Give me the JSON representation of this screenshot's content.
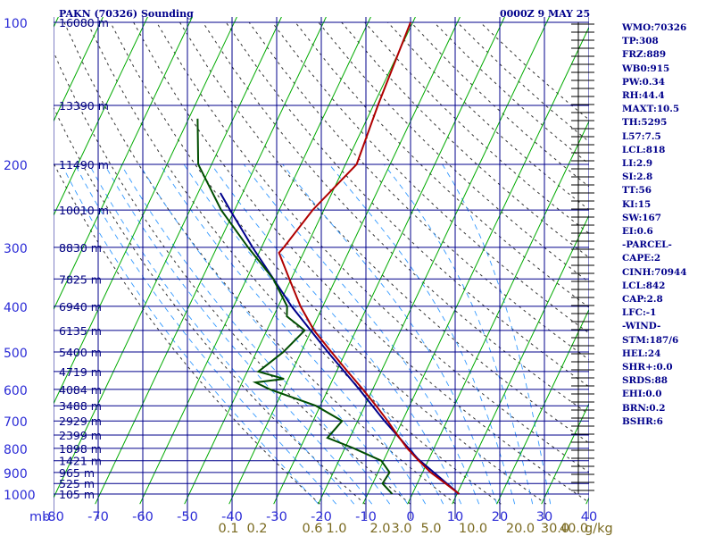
{
  "title": "PAKN (70326) Sounding",
  "datetime": "0000Z  9 MAY 25",
  "indices": [
    "WMO:70326",
    "TP:308",
    "FRZ:889",
    "WB0:915",
    "PW:0.34",
    "RH:44.4",
    "MAXT:10.5",
    "TH:5295",
    "L57:7.5",
    "LCL:818",
    "LI:2.9",
    "SI:2.8",
    "TT:56",
    "KI:15",
    "SW:167",
    "EI:0.6",
    "-PARCEL-",
    "CAPE:2",
    "CINH:70944",
    "LCL:842",
    "CAP:2.8",
    "LFC:-1",
    "-WIND-",
    "STM:187/6",
    "HEL:24",
    "SHR+:0.0",
    "SRDS:88",
    "EHI:0.0",
    "BRN:0.2",
    "BSHR:6"
  ],
  "colors": {
    "grid": "#00008b",
    "isotherm": "#00aa00",
    "dry_adiabat": "#333333",
    "moist_adiabat": "#3399ff",
    "temperature": "#b00000",
    "dewpoint": "#004d00",
    "parcel": "#00008b",
    "text": "#00008b"
  },
  "chart_data": {
    "type": "skew-t",
    "axis_unit_label": "mb",
    "pressure_levels": [
      100,
      200,
      300,
      400,
      500,
      600,
      700,
      800,
      900,
      1000
    ],
    "height_labels": [
      "16080 m",
      "13390 m",
      "11490 m",
      "10010 m",
      "8830 m",
      "7825 m",
      "6940 m",
      "6135 m",
      "5400 m",
      "4719 m",
      "4084 m",
      "3488 m",
      "2929 m",
      "2399 m",
      "1898 m",
      "1421 m",
      "965 m",
      "525 m",
      "105 m"
    ],
    "height_label_pressures": [
      100,
      150,
      200,
      250,
      300,
      350,
      400,
      450,
      500,
      550,
      600,
      650,
      700,
      750,
      800,
      850,
      900,
      950,
      1000
    ],
    "temperature_ticks": [
      -80,
      -70,
      -60,
      -50,
      -40,
      -30,
      -20,
      -10,
      0,
      10,
      20,
      30,
      40
    ],
    "mixing_ratio_labels": [
      "0.1",
      "0.2",
      "0.6",
      "1.0",
      "2.0",
      "3.0",
      "5.0",
      "10.0",
      "20.0",
      "30.0",
      "40.0"
    ],
    "mixing_ratio_unit": "g/kg",
    "temperature_profile": [
      {
        "p": 1000,
        "t": 10.5
      },
      {
        "p": 950,
        "t": 6.3
      },
      {
        "p": 900,
        "t": 1.8
      },
      {
        "p": 850,
        "t": -2.1
      },
      {
        "p": 800,
        "t": -6.0
      },
      {
        "p": 750,
        "t": -9.6
      },
      {
        "p": 700,
        "t": -13.3
      },
      {
        "p": 650,
        "t": -17.5
      },
      {
        "p": 600,
        "t": -22.2
      },
      {
        "p": 550,
        "t": -27.5
      },
      {
        "p": 500,
        "t": -33.2
      },
      {
        "p": 450,
        "t": -39.4
      },
      {
        "p": 400,
        "t": -45.0
      },
      {
        "p": 350,
        "t": -50.4
      },
      {
        "p": 308,
        "t": -55.5
      },
      {
        "p": 300,
        "t": -55.0
      },
      {
        "p": 250,
        "t": -52.5
      },
      {
        "p": 200,
        "t": -47.5
      },
      {
        "p": 150,
        "t": -49.0
      },
      {
        "p": 100,
        "t": -50.5
      }
    ],
    "dewpoint_profile": [
      {
        "p": 1000,
        "t": -4.5
      },
      {
        "p": 950,
        "t": -7.8
      },
      {
        "p": 900,
        "t": -7.4
      },
      {
        "p": 850,
        "t": -10.5
      },
      {
        "p": 800,
        "t": -18.0
      },
      {
        "p": 760,
        "t": -25.0
      },
      {
        "p": 720,
        "t": -24.0
      },
      {
        "p": 700,
        "t": -23.5
      },
      {
        "p": 650,
        "t": -31.0
      },
      {
        "p": 600,
        "t": -43.0
      },
      {
        "p": 580,
        "t": -47.0
      },
      {
        "p": 570,
        "t": -41.0
      },
      {
        "p": 550,
        "t": -47.5
      },
      {
        "p": 500,
        "t": -44.0
      },
      {
        "p": 450,
        "t": -41.5
      },
      {
        "p": 420,
        "t": -47.0
      },
      {
        "p": 400,
        "t": -48.0
      },
      {
        "p": 350,
        "t": -54.0
      },
      {
        "p": 300,
        "t": -63.0
      },
      {
        "p": 250,
        "t": -73.0
      },
      {
        "p": 200,
        "t": -83.0
      },
      {
        "p": 160,
        "t": -88.0
      }
    ],
    "parcel_profile": [
      {
        "p": 1000,
        "t": 10.5
      },
      {
        "p": 842,
        "t": -2.5
      },
      {
        "p": 700,
        "t": -14.0
      },
      {
        "p": 600,
        "t": -23.0
      },
      {
        "p": 500,
        "t": -34.0
      },
      {
        "p": 400,
        "t": -47.0
      },
      {
        "p": 300,
        "t": -62.0
      },
      {
        "p": 250,
        "t": -71.0
      },
      {
        "p": 230,
        "t": -75.0
      }
    ]
  }
}
